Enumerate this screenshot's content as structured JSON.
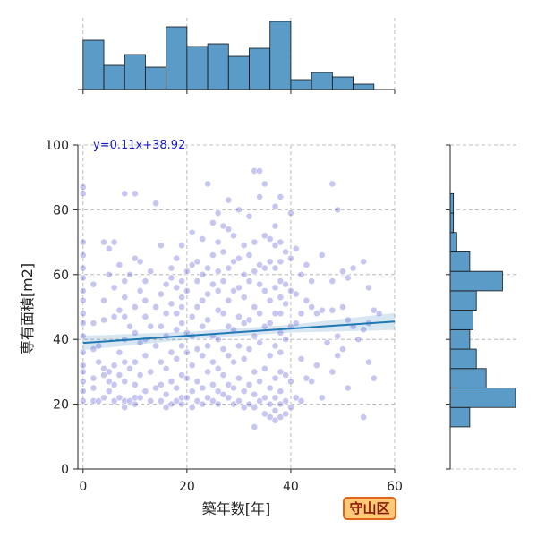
{
  "chart_data": {
    "type": "scatter",
    "xlabel": "築年数[年]",
    "ylabel": "専有面積[m2]",
    "xlim": [
      -1,
      60
    ],
    "ylim": [
      0,
      100
    ],
    "x_ticks": [
      "0",
      "20",
      "40",
      "60"
    ],
    "y_ticks": [
      "0",
      "20",
      "40",
      "60",
      "80",
      "100"
    ],
    "grid": true,
    "regression": {
      "label": "y=0.11x+38.92",
      "slope": 0.11,
      "intercept": 38.92,
      "color": "#1f77b4"
    },
    "point_color": "#3333cc",
    "bar_color": "#5b9bc7",
    "x_marginal": {
      "bin_edges": [
        0,
        4,
        8,
        12,
        16,
        20,
        24,
        28,
        32,
        36,
        40,
        44,
        48,
        52,
        56
      ],
      "counts": [
        55,
        27,
        39,
        25,
        70,
        48,
        51,
        37,
        46,
        76,
        11,
        19,
        14,
        6
      ]
    },
    "y_marginal": {
      "bin_edges": [
        13,
        19,
        25,
        31,
        37,
        43,
        49,
        55,
        61,
        67,
        73,
        79,
        85,
        91,
        97
      ],
      "counts": [
        6,
        20,
        11,
        8,
        6,
        7,
        8,
        16,
        6,
        2,
        1,
        1,
        0,
        0
      ]
    },
    "points": [
      [
        0,
        21
      ],
      [
        0,
        24
      ],
      [
        0,
        27
      ],
      [
        0,
        30
      ],
      [
        0,
        32
      ],
      [
        0,
        36
      ],
      [
        0,
        41
      ],
      [
        0,
        45
      ],
      [
        0,
        48
      ],
      [
        0,
        52
      ],
      [
        0,
        55
      ],
      [
        0,
        59
      ],
      [
        0,
        62
      ],
      [
        0,
        66
      ],
      [
        0,
        70
      ],
      [
        0,
        85
      ],
      [
        0,
        87
      ],
      [
        2,
        21
      ],
      [
        2,
        25
      ],
      [
        2,
        28
      ],
      [
        2,
        37
      ],
      [
        2,
        45
      ],
      [
        2,
        57
      ],
      [
        3,
        21
      ],
      [
        3,
        33
      ],
      [
        3,
        38
      ],
      [
        4,
        22
      ],
      [
        4,
        29
      ],
      [
        4,
        31
      ],
      [
        4,
        46
      ],
      [
        4,
        52
      ],
      [
        4,
        70
      ],
      [
        5,
        24
      ],
      [
        5,
        27
      ],
      [
        5,
        30
      ],
      [
        5,
        60
      ],
      [
        5,
        68
      ],
      [
        6,
        21
      ],
      [
        6,
        26
      ],
      [
        6,
        32
      ],
      [
        6,
        47
      ],
      [
        6,
        56
      ],
      [
        6,
        70
      ],
      [
        7,
        22
      ],
      [
        7,
        29
      ],
      [
        7,
        36
      ],
      [
        7,
        49
      ],
      [
        7,
        63
      ],
      [
        8,
        19
      ],
      [
        8,
        21
      ],
      [
        8,
        27
      ],
      [
        8,
        33
      ],
      [
        8,
        40
      ],
      [
        8,
        47
      ],
      [
        8,
        53
      ],
      [
        8,
        58
      ],
      [
        8,
        85
      ],
      [
        9,
        21
      ],
      [
        9,
        31
      ],
      [
        9,
        44
      ],
      [
        9,
        60
      ],
      [
        10,
        20
      ],
      [
        10,
        22
      ],
      [
        10,
        26
      ],
      [
        10,
        33
      ],
      [
        10,
        42
      ],
      [
        10,
        50
      ],
      [
        10,
        65
      ],
      [
        10,
        85
      ],
      [
        11,
        22
      ],
      [
        11,
        29
      ],
      [
        11,
        39
      ],
      [
        11,
        55
      ],
      [
        11,
        64
      ],
      [
        12,
        24
      ],
      [
        12,
        35
      ],
      [
        12,
        40
      ],
      [
        12,
        47
      ],
      [
        12,
        52
      ],
      [
        12,
        58
      ],
      [
        13,
        21
      ],
      [
        13,
        30
      ],
      [
        13,
        44
      ],
      [
        13,
        61
      ],
      [
        14,
        25
      ],
      [
        14,
        38
      ],
      [
        14,
        50
      ],
      [
        14,
        82
      ],
      [
        15,
        21
      ],
      [
        15,
        26
      ],
      [
        15,
        33
      ],
      [
        15,
        44
      ],
      [
        15,
        54
      ],
      [
        15,
        69
      ],
      [
        16,
        19
      ],
      [
        16,
        23
      ],
      [
        16,
        31
      ],
      [
        16,
        41
      ],
      [
        16,
        48
      ],
      [
        16,
        57
      ],
      [
        17,
        20
      ],
      [
        17,
        27
      ],
      [
        17,
        36
      ],
      [
        17,
        51
      ],
      [
        17,
        59
      ],
      [
        17,
        62
      ],
      [
        18,
        21
      ],
      [
        18,
        25
      ],
      [
        18,
        34
      ],
      [
        18,
        43
      ],
      [
        18,
        48
      ],
      [
        18,
        56
      ],
      [
        18,
        65
      ],
      [
        19,
        20
      ],
      [
        19,
        22
      ],
      [
        19,
        29
      ],
      [
        19,
        38
      ],
      [
        19,
        45
      ],
      [
        19,
        50
      ],
      [
        19,
        53
      ],
      [
        19,
        58
      ],
      [
        19,
        69
      ],
      [
        20,
        22
      ],
      [
        20,
        28
      ],
      [
        20,
        36
      ],
      [
        20,
        42
      ],
      [
        20,
        55
      ],
      [
        20,
        61
      ],
      [
        21,
        19
      ],
      [
        21,
        24
      ],
      [
        21,
        32
      ],
      [
        21,
        41
      ],
      [
        21,
        47
      ],
      [
        21,
        63
      ],
      [
        21,
        73
      ],
      [
        22,
        21
      ],
      [
        22,
        27
      ],
      [
        22,
        37
      ],
      [
        22,
        50
      ],
      [
        22,
        58
      ],
      [
        22,
        64
      ],
      [
        23,
        20
      ],
      [
        23,
        25
      ],
      [
        23,
        35
      ],
      [
        23,
        44
      ],
      [
        23,
        52
      ],
      [
        23,
        60
      ],
      [
        23,
        71
      ],
      [
        24,
        22
      ],
      [
        24,
        30
      ],
      [
        24,
        38
      ],
      [
        24,
        46
      ],
      [
        24,
        54
      ],
      [
        24,
        62
      ],
      [
        24,
        88
      ],
      [
        25,
        21
      ],
      [
        25,
        26
      ],
      [
        25,
        33
      ],
      [
        25,
        41
      ],
      [
        25,
        57
      ],
      [
        25,
        66
      ],
      [
        25,
        76
      ],
      [
        26,
        20
      ],
      [
        26,
        24
      ],
      [
        26,
        31
      ],
      [
        26,
        40
      ],
      [
        26,
        49
      ],
      [
        26,
        55
      ],
      [
        26,
        61
      ],
      [
        26,
        70
      ],
      [
        26,
        79
      ],
      [
        27,
        23
      ],
      [
        27,
        29
      ],
      [
        27,
        37
      ],
      [
        27,
        48
      ],
      [
        27,
        58
      ],
      [
        27,
        67
      ],
      [
        27,
        75
      ],
      [
        28,
        22
      ],
      [
        28,
        26
      ],
      [
        28,
        35
      ],
      [
        28,
        44
      ],
      [
        28,
        52
      ],
      [
        28,
        62
      ],
      [
        28,
        74
      ],
      [
        28,
        83
      ],
      [
        29,
        20
      ],
      [
        29,
        25
      ],
      [
        29,
        33
      ],
      [
        29,
        43
      ],
      [
        29,
        55
      ],
      [
        29,
        64
      ],
      [
        29,
        72
      ],
      [
        30,
        21
      ],
      [
        30,
        28
      ],
      [
        30,
        38
      ],
      [
        30,
        47
      ],
      [
        30,
        56
      ],
      [
        30,
        65
      ],
      [
        30,
        80
      ],
      [
        31,
        19
      ],
      [
        31,
        24
      ],
      [
        31,
        34
      ],
      [
        31,
        45
      ],
      [
        31,
        53
      ],
      [
        31,
        60
      ],
      [
        31,
        69
      ],
      [
        32,
        20
      ],
      [
        32,
        26
      ],
      [
        32,
        37
      ],
      [
        32,
        46
      ],
      [
        32,
        58
      ],
      [
        32,
        66
      ],
      [
        32,
        78
      ],
      [
        33,
        13
      ],
      [
        33,
        19
      ],
      [
        33,
        23
      ],
      [
        33,
        30
      ],
      [
        33,
        41
      ],
      [
        33,
        50
      ],
      [
        33,
        61
      ],
      [
        33,
        70
      ],
      [
        33,
        92
      ],
      [
        34,
        21
      ],
      [
        34,
        27
      ],
      [
        34,
        39
      ],
      [
        34,
        48
      ],
      [
        34,
        57
      ],
      [
        34,
        63
      ],
      [
        34,
        84
      ],
      [
        34,
        92
      ],
      [
        35,
        17
      ],
      [
        35,
        22
      ],
      [
        35,
        31
      ],
      [
        35,
        44
      ],
      [
        35,
        55
      ],
      [
        35,
        62
      ],
      [
        35,
        72
      ],
      [
        35,
        88
      ],
      [
        36,
        16
      ],
      [
        36,
        20
      ],
      [
        36,
        25
      ],
      [
        36,
        35
      ],
      [
        36,
        45
      ],
      [
        36,
        52
      ],
      [
        36,
        64
      ],
      [
        36,
        71
      ],
      [
        37,
        15
      ],
      [
        37,
        18
      ],
      [
        37,
        22
      ],
      [
        37,
        28
      ],
      [
        37,
        38
      ],
      [
        37,
        48
      ],
      [
        37,
        56
      ],
      [
        37,
        62
      ],
      [
        37,
        69
      ],
      [
        37,
        75
      ],
      [
        37,
        81
      ],
      [
        38,
        16
      ],
      [
        38,
        20
      ],
      [
        38,
        24
      ],
      [
        38,
        30
      ],
      [
        38,
        36
      ],
      [
        38,
        42
      ],
      [
        38,
        48
      ],
      [
        38,
        53
      ],
      [
        38,
        58
      ],
      [
        38,
        64
      ],
      [
        38,
        70
      ],
      [
        38,
        84
      ],
      [
        39,
        17
      ],
      [
        39,
        21
      ],
      [
        39,
        29
      ],
      [
        39,
        40
      ],
      [
        39,
        51
      ],
      [
        39,
        57
      ],
      [
        39,
        67
      ],
      [
        40,
        19
      ],
      [
        40,
        27
      ],
      [
        40,
        44
      ],
      [
        40,
        55
      ],
      [
        40,
        65
      ],
      [
        40,
        79
      ],
      [
        41,
        22
      ],
      [
        41,
        45
      ],
      [
        41,
        54
      ],
      [
        41,
        68
      ],
      [
        42,
        21
      ],
      [
        42,
        34
      ],
      [
        42,
        48
      ],
      [
        42,
        60
      ],
      [
        43,
        28
      ],
      [
        43,
        52
      ],
      [
        43,
        63
      ],
      [
        44,
        27
      ],
      [
        44,
        50
      ],
      [
        44,
        58
      ],
      [
        45,
        32
      ],
      [
        45,
        48
      ],
      [
        46,
        22
      ],
      [
        46,
        66
      ],
      [
        46,
        49
      ],
      [
        47,
        39
      ],
      [
        48,
        30
      ],
      [
        48,
        49
      ],
      [
        48,
        58
      ],
      [
        48,
        88
      ],
      [
        49,
        35
      ],
      [
        49,
        41
      ],
      [
        49,
        80
      ],
      [
        50,
        37
      ],
      [
        50,
        50
      ],
      [
        50,
        61
      ],
      [
        51,
        25
      ],
      [
        51,
        46
      ],
      [
        51,
        59
      ],
      [
        52,
        44
      ],
      [
        52,
        62
      ],
      [
        53,
        40
      ],
      [
        54,
        16
      ],
      [
        54,
        43
      ],
      [
        54,
        64
      ],
      [
        55,
        33
      ],
      [
        55,
        45
      ],
      [
        55,
        56
      ],
      [
        56,
        28
      ],
      [
        56,
        49
      ],
      [
        57,
        48
      ]
    ]
  },
  "ward_badge": "守山区"
}
